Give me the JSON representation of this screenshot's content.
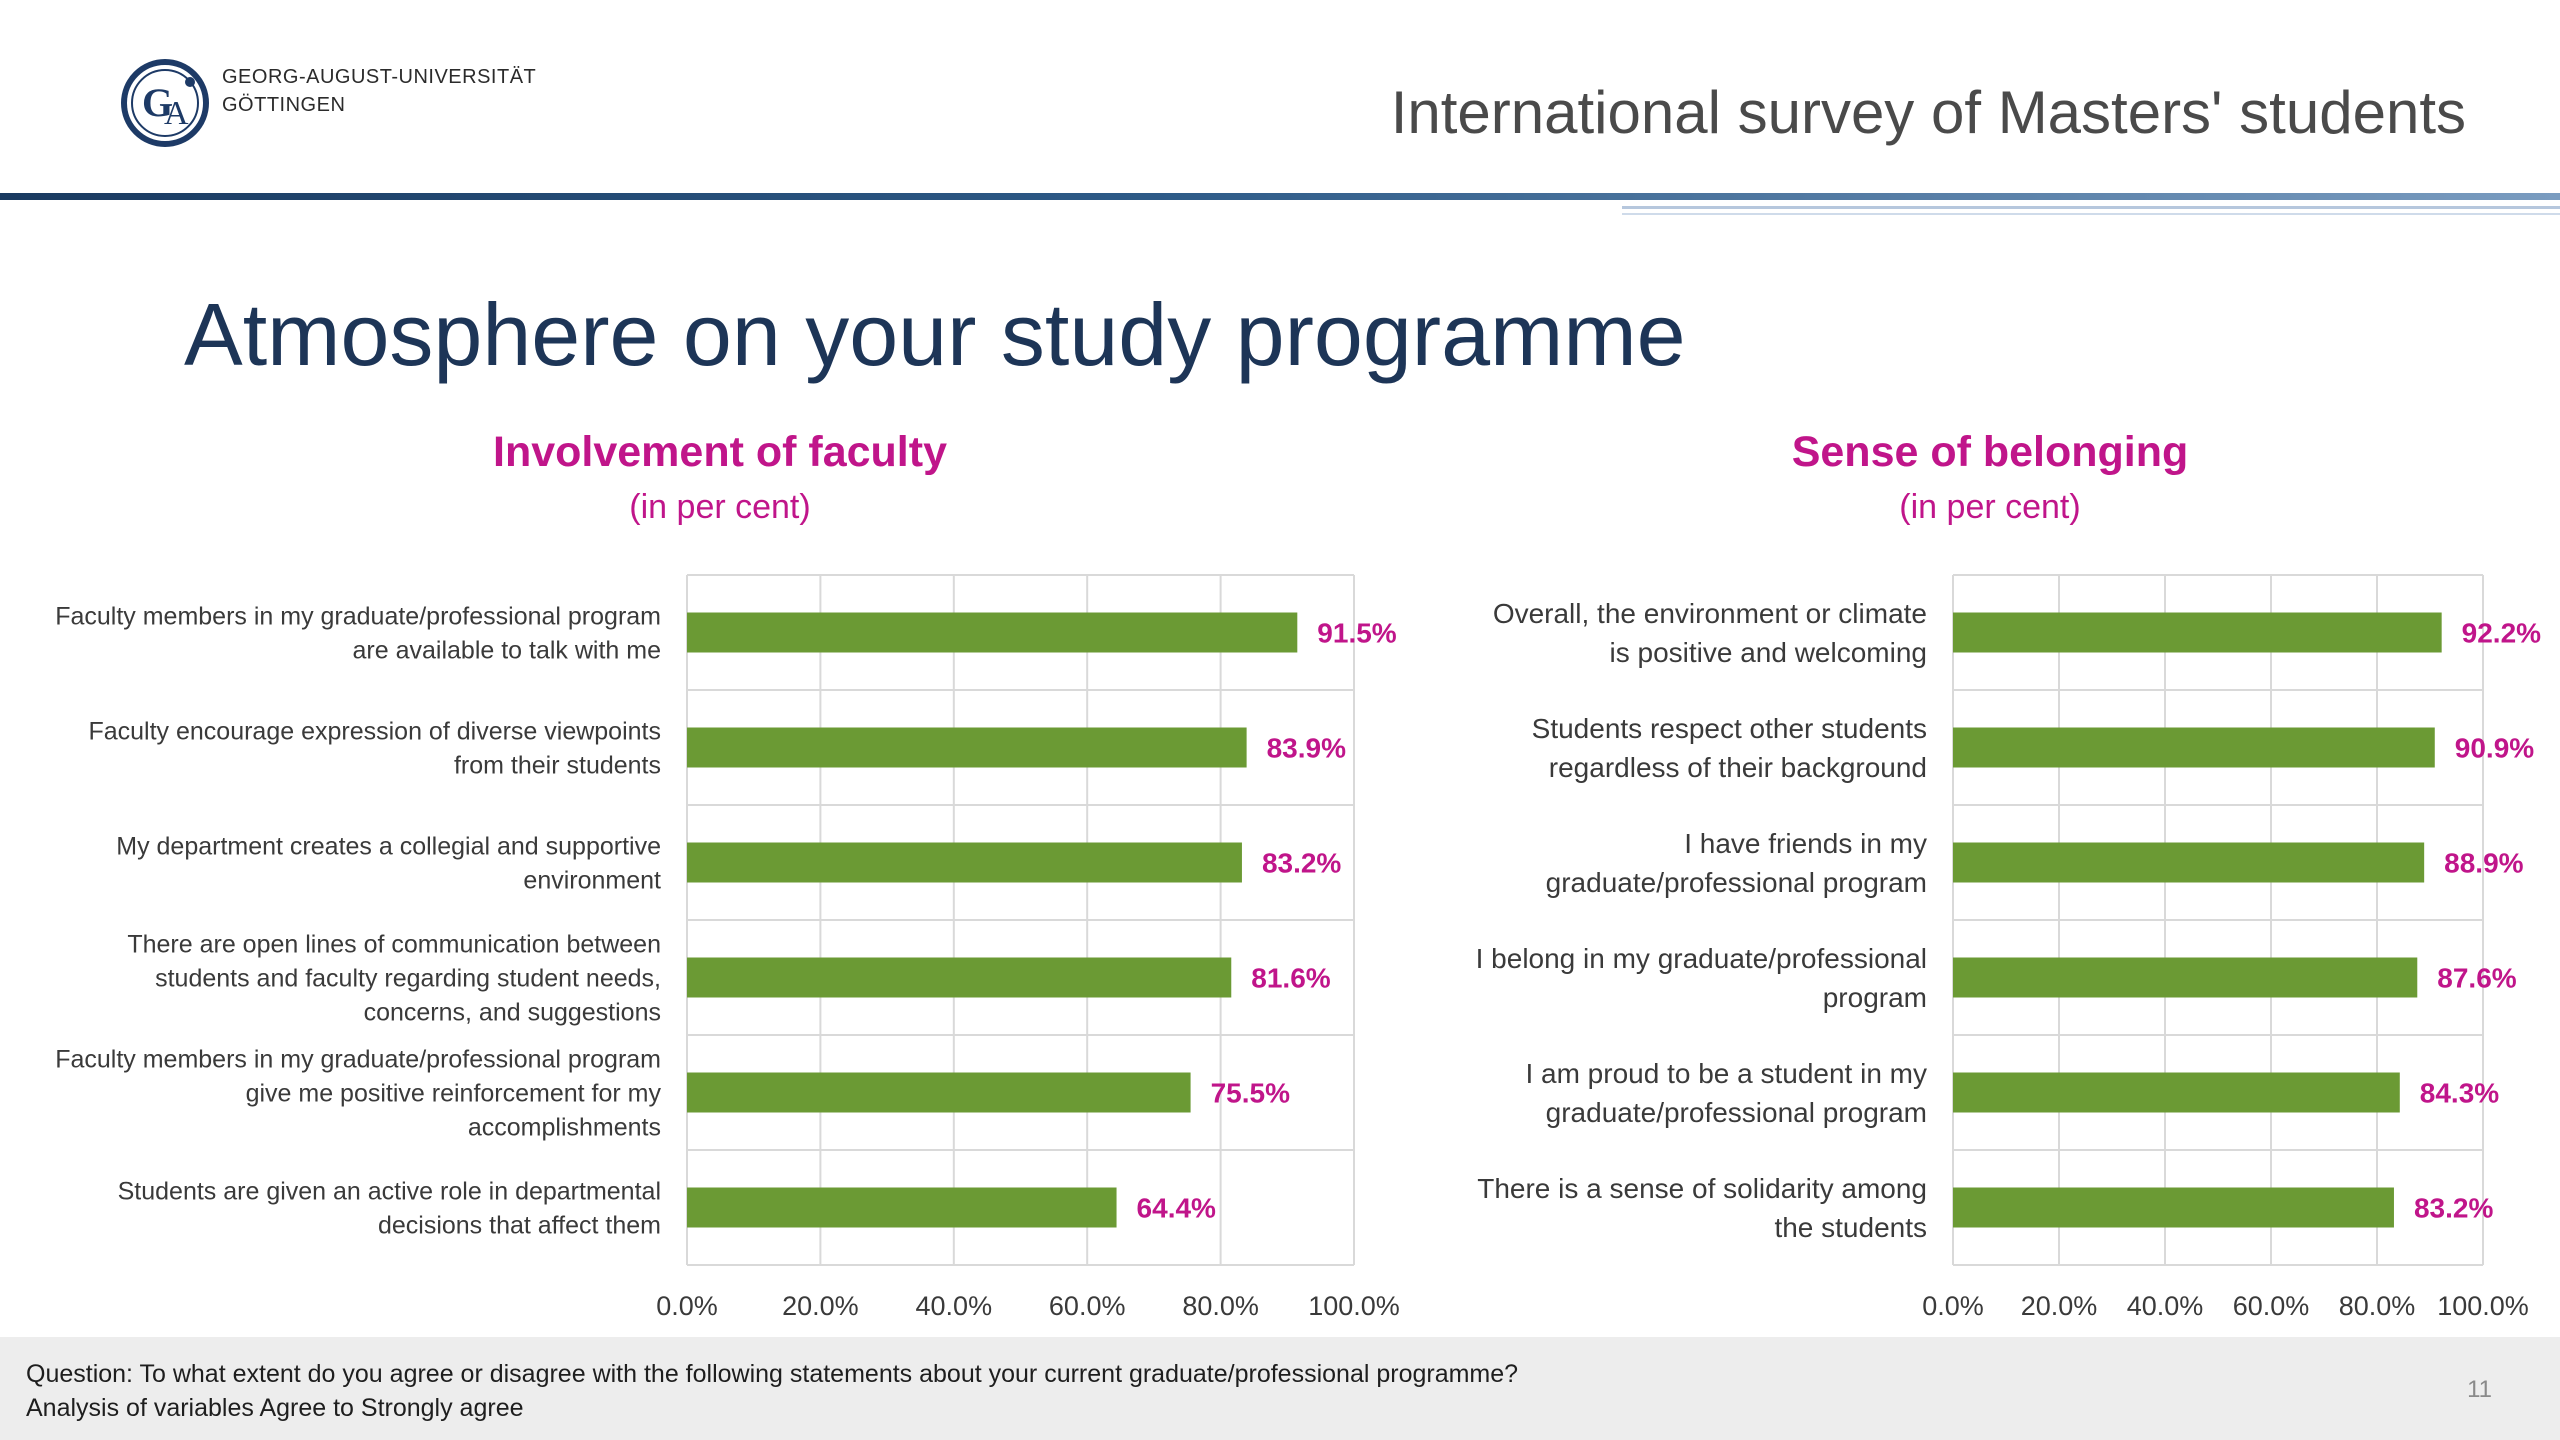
{
  "header": {
    "university_line1": "GEORG-AUGUST-UNIVERSITÄT",
    "university_line2": "GÖTTINGEN",
    "survey_title": "International survey of Masters' students"
  },
  "slide": {
    "title": "Atmosphere on your study programme",
    "footer_line1": "Question: To what extent do you agree or disagree with the following statements about your current graduate/professional programme?",
    "footer_line2": "Analysis of variables Agree to Strongly agree",
    "page_number": "11"
  },
  "colors": {
    "bar": "#6b9a34",
    "accent": "#c0158a",
    "title": "#1d3557"
  },
  "chart_data": [
    {
      "type": "bar",
      "orientation": "horizontal",
      "title": "Involvement of faculty",
      "subtitle": "(in per cent)",
      "categories": [
        [
          "Faculty members in my graduate/professional program",
          "are available to talk with me"
        ],
        [
          "Faculty encourage expression of diverse viewpoints",
          "from their students"
        ],
        [
          "My department creates a collegial and supportive",
          "environment"
        ],
        [
          "There are open lines of communication between",
          "students and faculty regarding student needs,",
          "concerns, and suggestions"
        ],
        [
          "Faculty members in my graduate/professional program",
          "give me positive reinforcement for my",
          "accomplishments"
        ],
        [
          "Students are given an active role in departmental",
          "decisions that affect them"
        ]
      ],
      "values": [
        91.5,
        83.9,
        83.2,
        81.6,
        75.5,
        64.4
      ],
      "value_labels": [
        "91.5%",
        "83.9%",
        "83.2%",
        "81.6%",
        "75.5%",
        "64.4%"
      ],
      "xlim": [
        0,
        100
      ],
      "ticks": [
        "0.0%",
        "20.0%",
        "40.0%",
        "60.0%",
        "80.0%",
        "100.0%"
      ],
      "grid": true,
      "legend": "none"
    },
    {
      "type": "bar",
      "orientation": "horizontal",
      "title": "Sense of belonging",
      "subtitle": "(in per cent)",
      "categories": [
        [
          "Overall, the environment or climate",
          "is positive and welcoming"
        ],
        [
          "Students respect other students",
          "regardless of their background"
        ],
        [
          "I have friends in my",
          "graduate/professional program"
        ],
        [
          "I belong in my graduate/professional",
          "program"
        ],
        [
          "I am proud to be a student in my",
          "graduate/professional program"
        ],
        [
          "There is a sense of solidarity among",
          "the students"
        ]
      ],
      "values": [
        92.2,
        90.9,
        88.9,
        87.6,
        84.3,
        83.2
      ],
      "value_labels": [
        "92.2%",
        "90.9%",
        "88.9%",
        "87.6%",
        "84.3%",
        "83.2%"
      ],
      "xlim": [
        0,
        100
      ],
      "ticks": [
        "0.0%",
        "20.0%",
        "40.0%",
        "60.0%",
        "80.0%",
        "100.0%"
      ],
      "grid": true,
      "legend": "none"
    }
  ]
}
